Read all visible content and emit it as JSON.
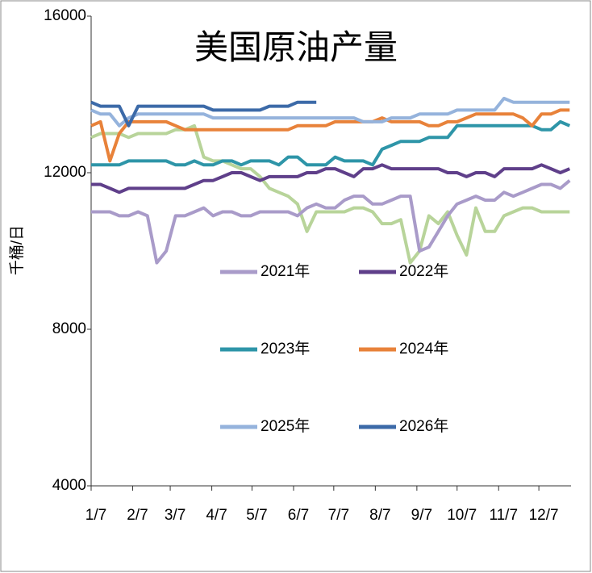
{
  "chart_data": {
    "type": "line",
    "title": "美国原油产量",
    "y_label": "千桶/日",
    "x": [
      0,
      7,
      14,
      21,
      28,
      35,
      42,
      49,
      56,
      63,
      70,
      77,
      84,
      91,
      98,
      105,
      112,
      119,
      126,
      133,
      140,
      147,
      154,
      161,
      168,
      175,
      182,
      189,
      196,
      203,
      210,
      217,
      224,
      231,
      238,
      245,
      252,
      259,
      266,
      273,
      280,
      287,
      294,
      301,
      308,
      315,
      322,
      329,
      336,
      343,
      350,
      357
    ],
    "xlim": [
      0,
      358
    ],
    "xticks": [
      {
        "value": 0,
        "label": "1/7"
      },
      {
        "value": 31,
        "label": "2/7"
      },
      {
        "value": 59,
        "label": "3/7"
      },
      {
        "value": 90,
        "label": "4/7"
      },
      {
        "value": 120,
        "label": "5/7"
      },
      {
        "value": 151,
        "label": "6/7"
      },
      {
        "value": 181,
        "label": "7/7"
      },
      {
        "value": 212,
        "label": "8/7"
      },
      {
        "value": 243,
        "label": "9/7"
      },
      {
        "value": 273,
        "label": "10/7"
      },
      {
        "value": 304,
        "label": "11/7"
      },
      {
        "value": 334,
        "label": "12/7"
      }
    ],
    "ylim": [
      4000,
      16000
    ],
    "yticks": [
      4000,
      8000,
      12000,
      16000
    ],
    "grid": false,
    "series": [
      {
        "color": "#b8d49a",
        "values": [
          12900,
          13000,
          13000,
          13000,
          12900,
          13000,
          13000,
          13000,
          13000,
          13100,
          13100,
          13200,
          12400,
          12300,
          12300,
          12200,
          12100,
          12100,
          11900,
          11600,
          11500,
          11400,
          11200,
          10500,
          11000,
          11000,
          11000,
          11000,
          11100,
          11100,
          11000,
          10700,
          10700,
          10800,
          9700,
          10000,
          10900,
          10700,
          11000,
          10400,
          9900,
          11100,
          10500,
          10500,
          10900,
          11000,
          11100,
          11100,
          11000,
          11000,
          11000,
          11000
        ]
      },
      {
        "name": "2021年",
        "color": "#a99bc9",
        "values": [
          11000,
          11000,
          11000,
          10900,
          10900,
          11000,
          10900,
          9700,
          10000,
          10900,
          10900,
          11000,
          11100,
          10900,
          11000,
          11000,
          10900,
          10900,
          11000,
          11000,
          11000,
          11000,
          10900,
          11100,
          11200,
          11100,
          11100,
          11300,
          11400,
          11400,
          11200,
          11200,
          11300,
          11400,
          11400,
          10000,
          10100,
          10500,
          10900,
          11200,
          11300,
          11400,
          11300,
          11300,
          11500,
          11400,
          11500,
          11600,
          11700,
          11700,
          11600,
          11800
        ]
      },
      {
        "name": "2022年",
        "color": "#5f3f8a",
        "values": [
          11700,
          11700,
          11600,
          11500,
          11600,
          11600,
          11600,
          11600,
          11600,
          11600,
          11600,
          11700,
          11800,
          11800,
          11900,
          12000,
          12000,
          11900,
          11800,
          11900,
          11900,
          11900,
          11900,
          12000,
          12000,
          12100,
          12100,
          12000,
          11900,
          12100,
          12100,
          12200,
          12100,
          12100,
          12100,
          12100,
          12100,
          12100,
          12000,
          12000,
          11900,
          12000,
          12000,
          11900,
          12100,
          12100,
          12100,
          12100,
          12200,
          12100,
          12000,
          12100
        ]
      },
      {
        "name": "2023年",
        "color": "#2e95a8",
        "values": [
          12200,
          12200,
          12200,
          12200,
          12300,
          12300,
          12300,
          12300,
          12300,
          12200,
          12200,
          12300,
          12200,
          12200,
          12300,
          12300,
          12200,
          12300,
          12300,
          12300,
          12200,
          12400,
          12400,
          12200,
          12200,
          12200,
          12400,
          12300,
          12300,
          12300,
          12200,
          12600,
          12700,
          12800,
          12800,
          12800,
          12900,
          12900,
          12900,
          13200,
          13200,
          13200,
          13200,
          13200,
          13200,
          13200,
          13200,
          13200,
          13100,
          13100,
          13300,
          13200
        ]
      },
      {
        "name": "2024年",
        "color": "#e8823a",
        "values": [
          13200,
          13300,
          12300,
          13000,
          13300,
          13300,
          13300,
          13300,
          13300,
          13200,
          13100,
          13100,
          13100,
          13100,
          13100,
          13100,
          13100,
          13100,
          13100,
          13100,
          13100,
          13100,
          13200,
          13200,
          13200,
          13200,
          13300,
          13300,
          13300,
          13300,
          13300,
          13400,
          13300,
          13300,
          13300,
          13300,
          13200,
          13200,
          13300,
          13300,
          13400,
          13500,
          13500,
          13500,
          13500,
          13500,
          13400,
          13200,
          13500,
          13500,
          13600,
          13600
        ]
      },
      {
        "name": "2025年",
        "color": "#95b3dc",
        "values": [
          13600,
          13500,
          13500,
          13200,
          13400,
          13500,
          13500,
          13500,
          13500,
          13500,
          13500,
          13500,
          13500,
          13400,
          13400,
          13400,
          13400,
          13400,
          13400,
          13400,
          13400,
          13400,
          13400,
          13400,
          13400,
          13400,
          13400,
          13400,
          13400,
          13300,
          13300,
          13300,
          13400,
          13400,
          13400,
          13500,
          13500,
          13500,
          13500,
          13600,
          13600,
          13600,
          13600,
          13600,
          13900,
          13800,
          13800,
          13800,
          13800,
          13800,
          13800,
          13800
        ]
      },
      {
        "name": "2026年",
        "color": "#3c6aa8",
        "values": [
          13800,
          13700,
          13700,
          13700,
          13200,
          13700,
          13700,
          13700,
          13700,
          13700,
          13700,
          13700,
          13700,
          13600,
          13600,
          13600,
          13600,
          13600,
          13600,
          13700,
          13700,
          13700,
          13800,
          13800,
          13800,
          null,
          null,
          null,
          null,
          null,
          null,
          null,
          null,
          null,
          null,
          null,
          null,
          null,
          null,
          null,
          null,
          null,
          null,
          null,
          null,
          null,
          null,
          null,
          null,
          null,
          null,
          null
        ]
      }
    ]
  }
}
